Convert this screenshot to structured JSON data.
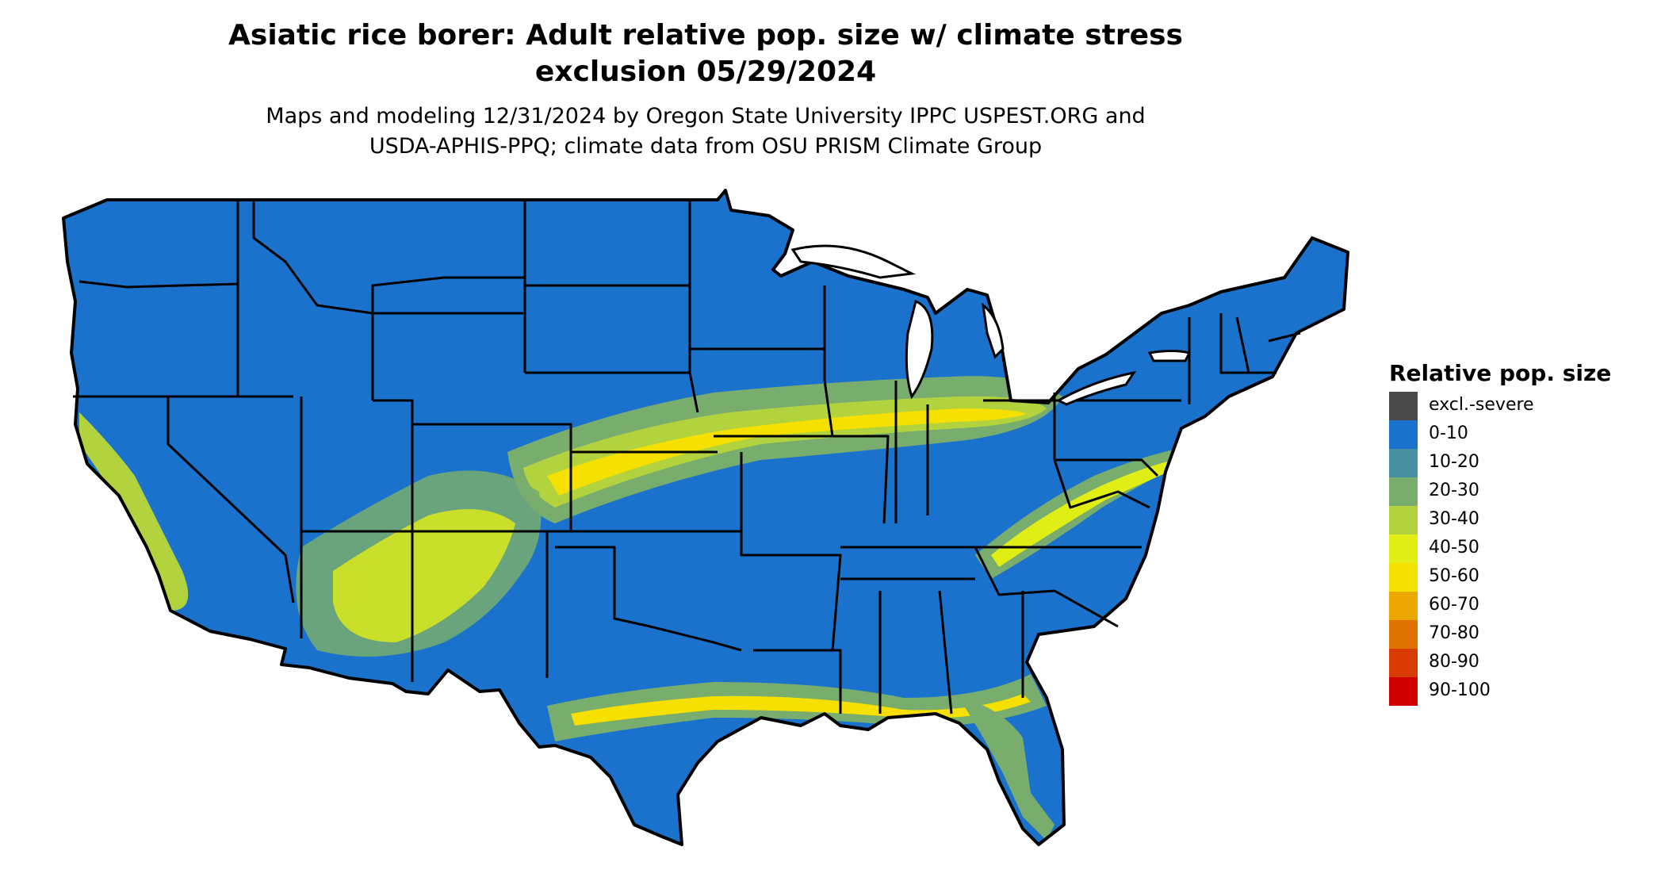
{
  "title": {
    "line1": "Asiatic rice borer: Adult relative pop. size w/ climate stress",
    "line2": "exclusion 05/29/2024"
  },
  "subtitle": {
    "line1": "Maps and modeling 12/31/2024 by Oregon State University IPPC USPEST.ORG and",
    "line2": "USDA-APHIS-PPQ; climate data from OSU PRISM Climate Group"
  },
  "colors": {
    "background_land": "#1b72cc",
    "border": "#000000"
  },
  "legend": {
    "title": "Relative pop. size",
    "items": [
      {
        "label": "excl.-severe",
        "color": "#4a4a4a"
      },
      {
        "label": "0-10",
        "color": "#1b72cc"
      },
      {
        "label": "10-20",
        "color": "#4790a2"
      },
      {
        "label": "20-30",
        "color": "#78ad6e"
      },
      {
        "label": "30-40",
        "color": "#b2d33d"
      },
      {
        "label": "40-50",
        "color": "#e1ee15"
      },
      {
        "label": "50-60",
        "color": "#f6e000"
      },
      {
        "label": "60-70",
        "color": "#eba800"
      },
      {
        "label": "70-80",
        "color": "#e07300"
      },
      {
        "label": "80-90",
        "color": "#d83b00"
      },
      {
        "label": "90-100",
        "color": "#d00000"
      }
    ]
  }
}
